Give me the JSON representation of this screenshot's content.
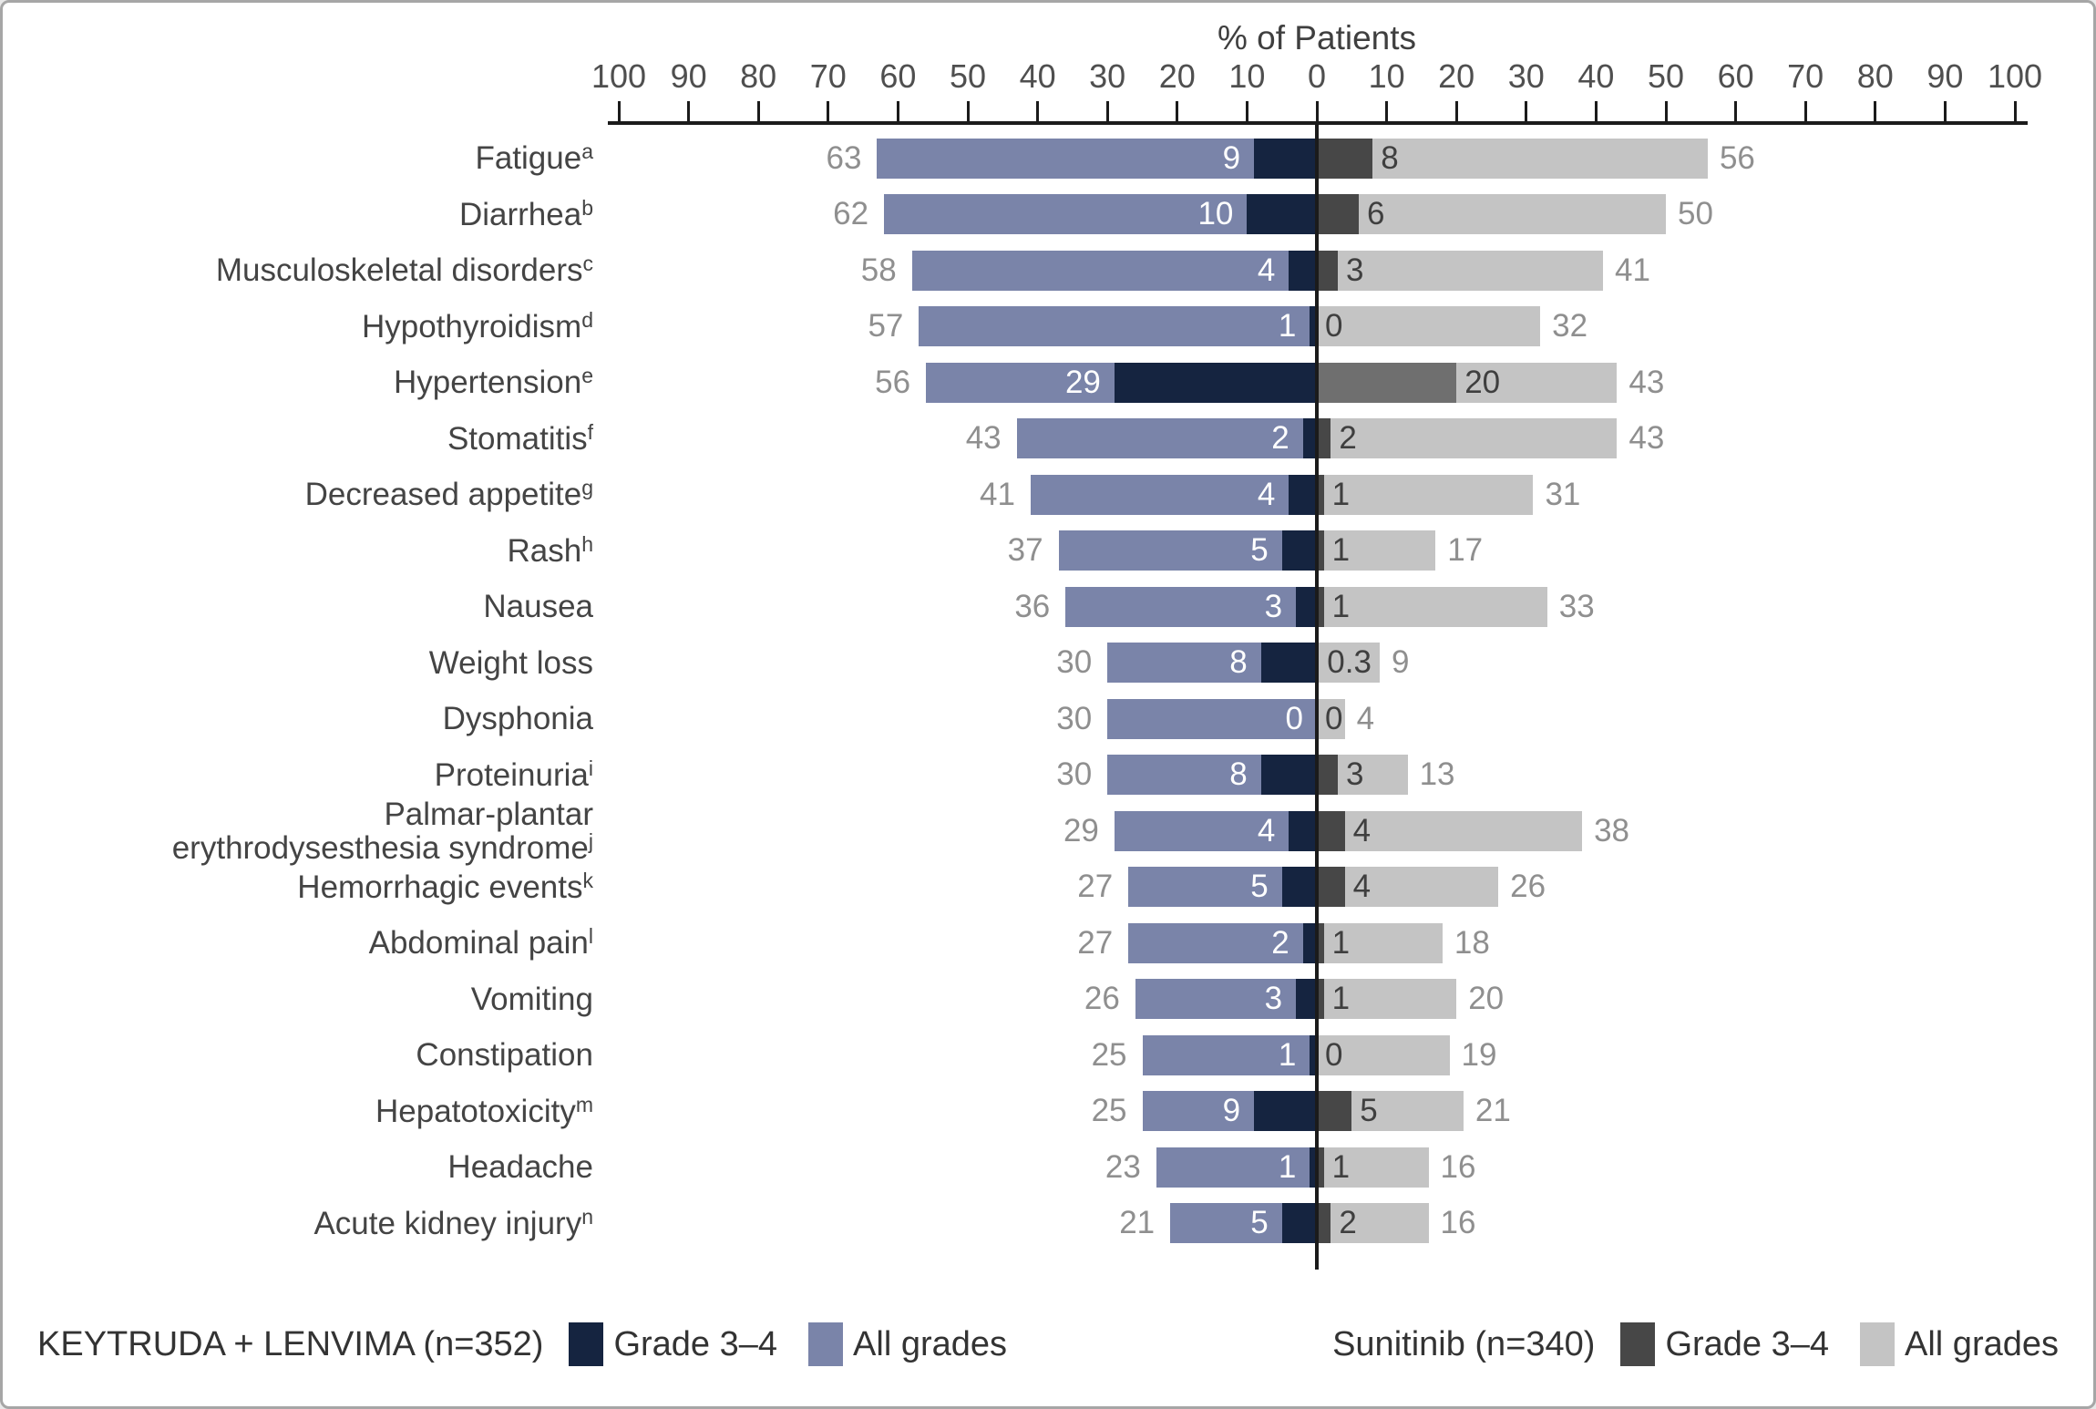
{
  "title": "% of Patients",
  "legend": {
    "keytruda": {
      "group": "KEYTRUDA + LENVIMA (n=352)",
      "g34": "Grade 3–4",
      "all": "All grades"
    },
    "sunitinib": {
      "group": "Sunitinib (n=340)",
      "g34": "Grade 3–4",
      "all": "All grades"
    }
  },
  "colors": {
    "kl_all": "#7A84A9",
    "kl_g34": "#152440",
    "sun_g34": "#474747",
    "sun_all": "#C4C4C4",
    "value_gray": "#8F8F8F",
    "value_dark": "#3F3F3F",
    "value_white": "#FFFFFF",
    "label_text": "#444444",
    "axis_text": "#4F4F4F",
    "axis_line": "#1B1B1B"
  },
  "chart_data": {
    "type": "bar",
    "variant": "diverging tornado / butterfly chart of adverse reactions",
    "title": "% of Patients",
    "xlabel": "% of Patients",
    "axis_range": [
      -100,
      100
    ],
    "tick_step": 10,
    "tick_labels_are_absolute": true,
    "grid": false,
    "legend_position": "bottom",
    "categories": [
      {
        "label": "Fatigue",
        "sup": "a"
      },
      {
        "label": "Diarrhea",
        "sup": "b"
      },
      {
        "label": "Musculoskeletal disorders",
        "sup": "c"
      },
      {
        "label": "Hypothyroidism",
        "sup": "d"
      },
      {
        "label": "Hypertension",
        "sup": "e"
      },
      {
        "label": "Stomatitis",
        "sup": "f"
      },
      {
        "label": "Decreased appetite",
        "sup": "g"
      },
      {
        "label": "Rash",
        "sup": "h"
      },
      {
        "label": "Nausea",
        "sup": ""
      },
      {
        "label": "Weight loss",
        "sup": ""
      },
      {
        "label": "Dysphonia",
        "sup": ""
      },
      {
        "label": "Proteinuria",
        "sup": "i"
      },
      {
        "label": "Palmar-plantar\nerythrodysesthesia syndrome",
        "sup": "j"
      },
      {
        "label": "Hemorrhagic events",
        "sup": "k"
      },
      {
        "label": "Abdominal pain",
        "sup": "l"
      },
      {
        "label": "Vomiting",
        "sup": ""
      },
      {
        "label": "Constipation",
        "sup": ""
      },
      {
        "label": "Hepatotoxicity",
        "sup": "m"
      },
      {
        "label": "Headache",
        "sup": ""
      },
      {
        "label": "Acute kidney injury",
        "sup": "n"
      }
    ],
    "series": [
      {
        "name": "KEYTRUDA + LENVIMA (n=352) – All grades",
        "group": "KEYTRUDA + LENVIMA (n=352)",
        "grade": "All grades",
        "side": "left",
        "values": [
          63,
          62,
          58,
          57,
          56,
          43,
          41,
          37,
          36,
          30,
          30,
          30,
          29,
          27,
          27,
          26,
          25,
          25,
          23,
          21
        ]
      },
      {
        "name": "KEYTRUDA + LENVIMA (n=352) – Grade 3–4",
        "group": "KEYTRUDA + LENVIMA (n=352)",
        "grade": "Grade 3–4",
        "side": "left",
        "values": [
          9,
          10,
          4,
          1,
          29,
          2,
          4,
          5,
          3,
          8,
          0,
          8,
          4,
          5,
          2,
          3,
          1,
          9,
          1,
          5
        ]
      },
      {
        "name": "Sunitinib (n=340) – Grade 3–4",
        "group": "Sunitinib (n=340)",
        "grade": "Grade 3–4",
        "side": "right",
        "values": [
          8,
          6,
          3,
          0,
          20,
          2,
          1,
          1,
          1,
          0.3,
          0,
          3,
          4,
          4,
          1,
          1,
          0,
          5,
          1,
          2
        ]
      },
      {
        "name": "Sunitinib (n=340) – All grades",
        "group": "Sunitinib (n=340)",
        "grade": "All grades",
        "side": "right",
        "values": [
          56,
          50,
          41,
          32,
          43,
          43,
          31,
          17,
          33,
          9,
          4,
          13,
          38,
          26,
          18,
          20,
          19,
          21,
          16,
          16
        ]
      }
    ],
    "segment_color_overrides": [
      {
        "row_index": 4,
        "series": "Sunitinib (n=340) – Grade 3–4",
        "color": "#6F6F6F"
      }
    ]
  }
}
